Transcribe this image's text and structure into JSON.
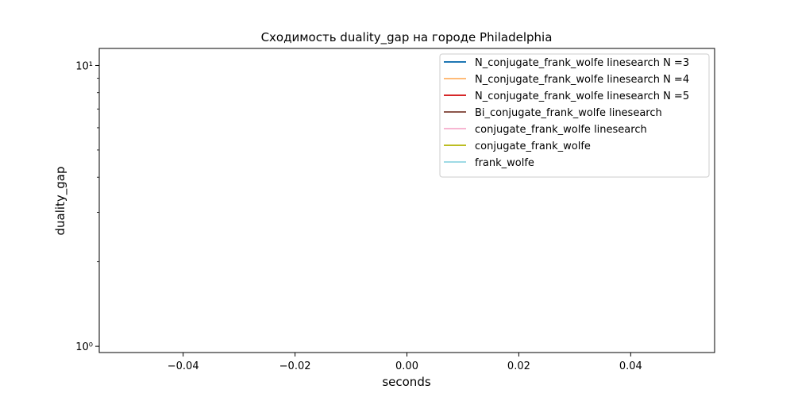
{
  "chart_data": {
    "type": "line",
    "title": "Сходимость duality_gap на городе Philadelphia",
    "xlabel": "seconds",
    "ylabel": "duality_gap",
    "xlim": [
      -0.055,
      0.055
    ],
    "ylim": [
      0.95,
      11.5
    ],
    "yscale": "log",
    "x_ticks": [
      -0.04,
      -0.02,
      0.0,
      0.02,
      0.04
    ],
    "x_tick_labels": [
      "−0.04",
      "−0.02",
      "0.00",
      "0.02",
      "0.04"
    ],
    "y_major_ticks": [
      1,
      10
    ],
    "y_minor_ticks": [
      2,
      3,
      4,
      5,
      6,
      7,
      8,
      9
    ],
    "y_tick_labels": [
      "10⁰",
      "10¹"
    ],
    "grid": false,
    "legend_position": "top-right",
    "series": [
      {
        "name": "N_conjugate_frank_wolfe linesearch N =3",
        "color": "#1f77b4",
        "x": [],
        "y": []
      },
      {
        "name": "N_conjugate_frank_wolfe linesearch N =4",
        "color": "#ffbb78",
        "x": [],
        "y": []
      },
      {
        "name": "N_conjugate_frank_wolfe linesearch N =5",
        "color": "#d62728",
        "x": [],
        "y": []
      },
      {
        "name": "Bi_conjugate_frank_wolfe linesearch",
        "color": "#8c564b",
        "x": [],
        "y": []
      },
      {
        "name": "conjugate_frank_wolfe linesearch",
        "color": "#f7b6d2",
        "x": [],
        "y": []
      },
      {
        "name": "conjugate_frank_wolfe",
        "color": "#bcbd22",
        "x": [],
        "y": []
      },
      {
        "name": "frank_wolfe",
        "color": "#9edae5",
        "x": [],
        "y": []
      }
    ]
  }
}
